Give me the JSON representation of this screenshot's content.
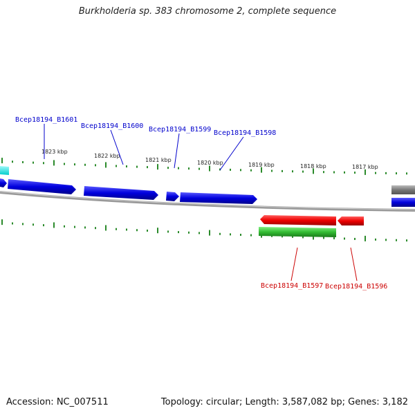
{
  "title": "Burkholderia sp. 383 chromosome 2, complete sequence",
  "footer": {
    "accession": "Accession: NC_007511",
    "summary": "Topology: circular; Length: 3,587,082 bp; Genes: 3,182"
  },
  "scale_labels": [
    "1823 kbp",
    "1822 kbp",
    "1821 kbp",
    "1820 kbp",
    "1819 kbp",
    "1818 kbp",
    "1817 kbp"
  ],
  "genes_top": [
    "Bcep18194_B1601",
    "Bcep18194_B1600",
    "Bcep18194_B1599",
    "Bcep18194_B1598"
  ],
  "genes_bottom": [
    "Bcep18194_B1597",
    "Bcep18194_B1596"
  ],
  "colors": {
    "forward_gene": "#0000dd",
    "reverse_gene": "#ee0000",
    "rna_feature": "#33bb33",
    "other_feature": "#00dddd",
    "backbone": "#888888",
    "tick": "#2a8a2a",
    "label_forward": "#0000cc",
    "label_reverse": "#cc0000"
  }
}
